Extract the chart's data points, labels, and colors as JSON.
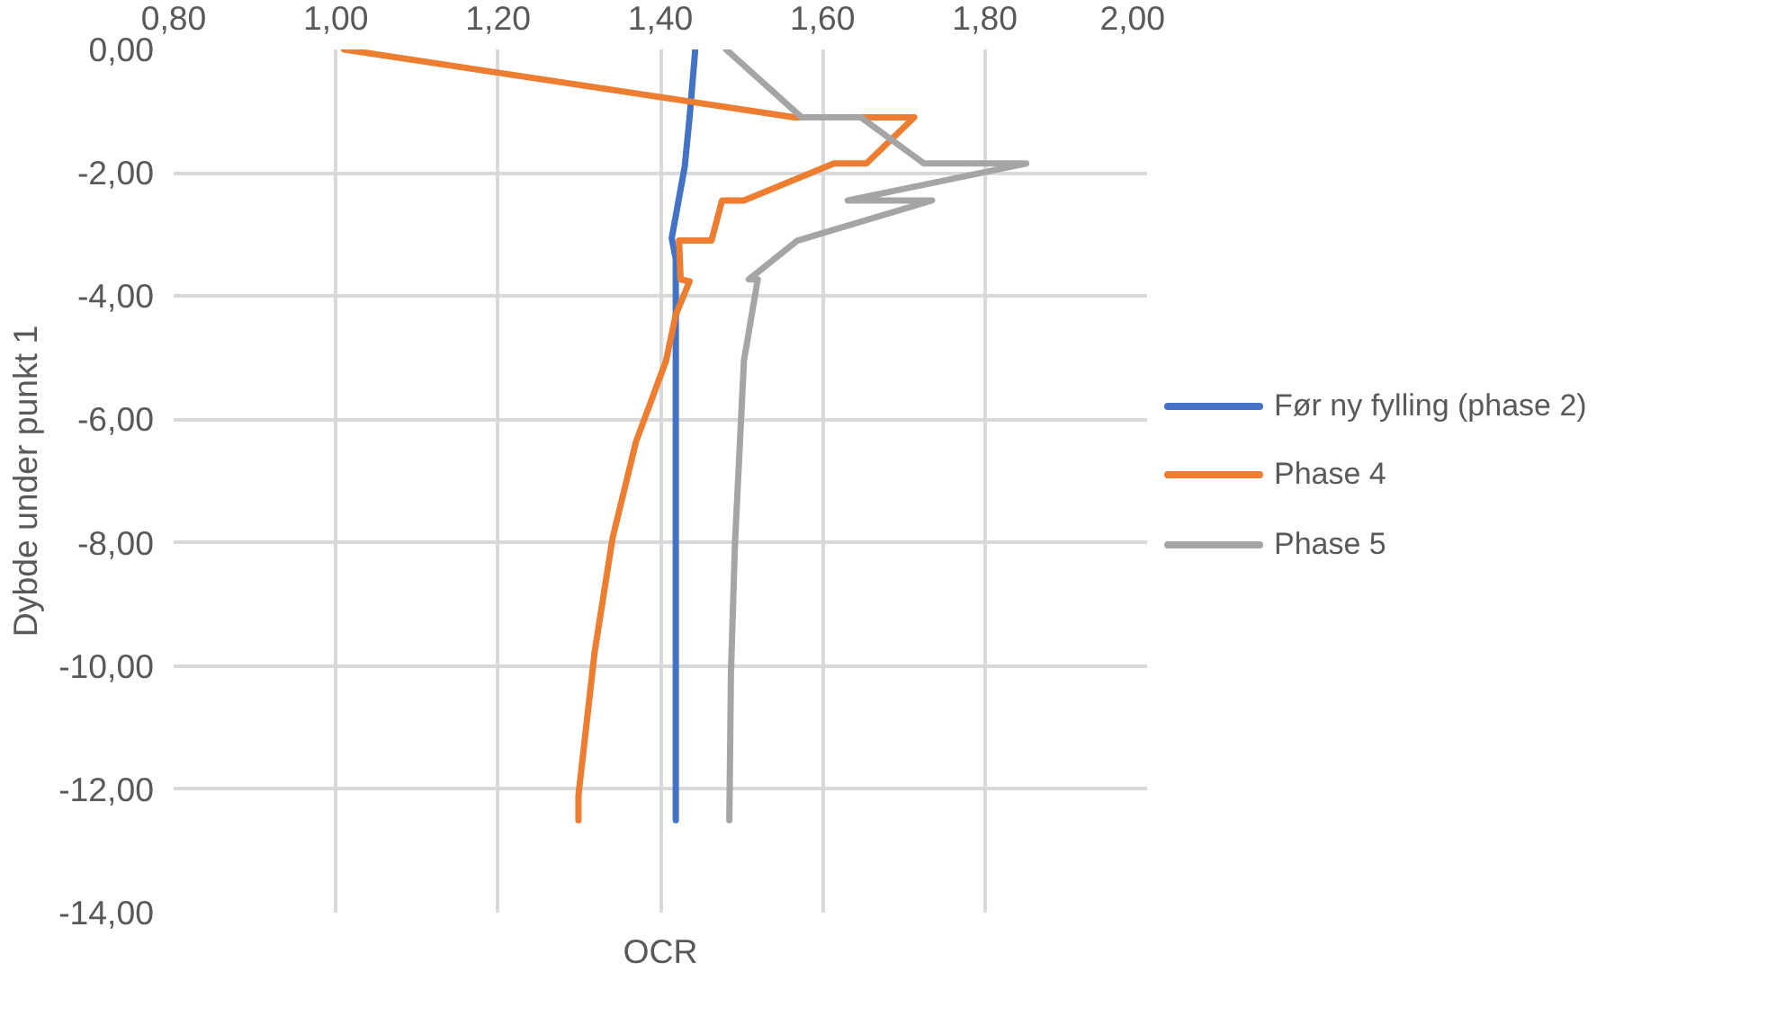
{
  "chart_data": {
    "type": "line",
    "xlabel": "OCR",
    "ylabel": "Dybde under punkt 1",
    "xlim": [
      0.8,
      2.0
    ],
    "xticks": [
      {
        "value": 0.8,
        "label": "0,80"
      },
      {
        "value": 1.0,
        "label": "1,00"
      },
      {
        "value": 1.2,
        "label": "1,20"
      },
      {
        "value": 1.4,
        "label": "1,40"
      },
      {
        "value": 1.6,
        "label": "1,60"
      },
      {
        "value": 1.8,
        "label": "1,80"
      },
      {
        "value": 2.0,
        "label": "2,00"
      }
    ],
    "ylim": [
      -14,
      0
    ],
    "yticks": [
      {
        "value": 0,
        "label": "0,00"
      },
      {
        "value": -2,
        "label": "-2,00"
      },
      {
        "value": -4,
        "label": "-4,00"
      },
      {
        "value": -6,
        "label": "-6,00"
      },
      {
        "value": -8,
        "label": "-8,00"
      },
      {
        "value": -10,
        "label": "-10,00"
      },
      {
        "value": -12,
        "label": "-12,00"
      },
      {
        "value": -14,
        "label": "-14,00"
      }
    ],
    "grid": true,
    "legend": "right",
    "marker": "none",
    "line_style": "solid",
    "series": [
      {
        "name": "Før ny fylling (phase 2)",
        "color": "#4472c4",
        "x": [
          1.443,
          1.436,
          1.43,
          1.414,
          1.419,
          1.419,
          1.419
        ],
        "values": [
          0,
          -1.1,
          -1.9,
          -3.06,
          -3.4,
          -5.5,
          -12.5
        ]
      },
      {
        "name": "Phase 4",
        "color": "#ed7d31",
        "x": [
          1.01,
          1.565,
          1.713,
          1.654,
          1.614,
          1.503,
          1.476,
          1.463,
          1.423,
          1.425,
          1.436,
          1.419,
          1.407,
          1.37,
          1.341,
          1.319,
          1.299,
          1.299
        ],
        "values": [
          0,
          -1.1,
          -1.1,
          -1.85,
          -1.85,
          -2.45,
          -2.45,
          -3.1,
          -3.1,
          -3.73,
          -3.76,
          -4.3,
          -5.05,
          -6.36,
          -7.93,
          -9.77,
          -12.1,
          -12.5
        ]
      },
      {
        "name": "Phase 5",
        "color": "#a5a5a5",
        "x": [
          1.481,
          1.574,
          1.647,
          1.725,
          1.851,
          1.631,
          1.735,
          1.569,
          1.509,
          1.52,
          1.503,
          1.492,
          1.487,
          1.485
        ],
        "values": [
          0,
          -1.1,
          -1.1,
          -1.85,
          -1.85,
          -2.45,
          -2.45,
          -3.1,
          -3.73,
          -3.73,
          -5.05,
          -8.0,
          -10.1,
          -12.5
        ]
      }
    ]
  }
}
